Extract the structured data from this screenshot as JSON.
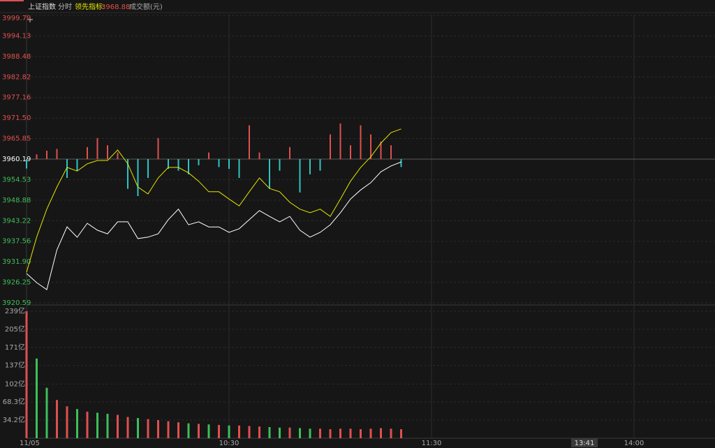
{
  "header": {
    "title": "上证指数",
    "mode": "分时",
    "indicator_label": "领先指标:",
    "indicator_value": 3968.88,
    "volume_label": "成交额(元)"
  },
  "cursor": {
    "time_label": "13:41"
  },
  "chart_data": [
    {
      "type": "line",
      "x": [
        0,
        3,
        6,
        9,
        12,
        15,
        18,
        21,
        24,
        27,
        30,
        33,
        36,
        39,
        42,
        45,
        48,
        51,
        54,
        57,
        60,
        63,
        66,
        69,
        72,
        75,
        78,
        81,
        84,
        87,
        90,
        93,
        96,
        99,
        102,
        105,
        108,
        111
      ],
      "xlim": [
        0,
        204
      ],
      "ylim": [
        3920.59,
        3999.79
      ],
      "yticks": [
        3920.59,
        3926.25,
        {
          "value": 3931.9,
          "label": "3931.90"
        },
        3937.56,
        3943.22,
        3948.88,
        3954.53,
        3960.19,
        3965.85,
        {
          "value": 3971.5,
          "label": "3971.50"
        },
        3977.16,
        3982.82,
        3988.48,
        3994.13,
        3999.79
      ],
      "baseline": 3960.19,
      "label_up_color": "#e0504f",
      "label_down_color": "#3fbf5a",
      "grid": true,
      "series": [
        {
          "color": "#ffffff",
          "values": [
            3928.66,
            3926.16,
            3924.24,
            3935.2,
            3941.54,
            3938.66,
            3942.5,
            3940.6,
            3939.6,
            3942.9,
            3942.9,
            3938.3,
            3938.7,
            3939.6,
            3943.5,
            3946.4,
            3942.1,
            3942.9,
            3941.5,
            3941.5,
            3940.0,
            3941.0,
            3943.5,
            3946.0,
            3944.4,
            3942.9,
            3944.4,
            3940.6,
            3938.7,
            3940.0,
            3942.1,
            3945.4,
            3949.2,
            3951.7,
            3953.7,
            3956.7,
            3958.3,
            3959.4
          ]
        },
        {
          "color": "#e6e600",
          "values": [
            3929.0,
            3938.7,
            3946.4,
            3952.5,
            3957.9,
            3956.9,
            3958.9,
            3959.8,
            3959.8,
            3962.7,
            3958.9,
            3952.5,
            3950.6,
            3955.0,
            3957.9,
            3957.9,
            3956.4,
            3954.1,
            3951.2,
            3951.2,
            3949.2,
            3947.3,
            3951.2,
            3955.0,
            3952.1,
            3951.2,
            3948.3,
            3946.4,
            3945.4,
            3946.4,
            3944.4,
            3949.2,
            3954.1,
            3957.9,
            3960.8,
            3964.6,
            3967.5,
            3968.5
          ]
        }
      ],
      "indicator_bars": {
        "up_color": "#e0504f",
        "down_color": "#2ec4c4",
        "values": [
          3957.6,
          3961.5,
          3962.5,
          3963.0,
          3955.0,
          3957.0,
          3963.5,
          3966.0,
          3964.0,
          3962.0,
          3952.0,
          3950.0,
          3955.0,
          3966.0,
          3957.5,
          3957.0,
          3956.0,
          3958.5,
          3962.0,
          3958.0,
          3957.5,
          3955.0,
          3969.5,
          3962.0,
          3952.0,
          3957.0,
          3963.5,
          3951.0,
          3956.0,
          3957.0,
          3967.0,
          3970.0,
          3964.0,
          3969.5,
          3967.0,
          3965.0,
          3964.0,
          3958.0
        ]
      }
    },
    {
      "type": "bar",
      "x": [
        0,
        3,
        6,
        9,
        12,
        15,
        18,
        21,
        24,
        27,
        30,
        33,
        36,
        39,
        42,
        45,
        48,
        51,
        54,
        57,
        60,
        63,
        66,
        69,
        72,
        75,
        78,
        81,
        84,
        87,
        90,
        93,
        96,
        99,
        102,
        105,
        108,
        111
      ],
      "xlim": [
        0,
        204
      ],
      "xticks": [
        {
          "value": 0,
          "label": "11/05"
        },
        {
          "value": 60,
          "label": "10:30"
        },
        {
          "value": 120,
          "label": "11:30"
        },
        {
          "value": 180,
          "label": "14:00"
        }
      ],
      "ylim": [
        0,
        239
      ],
      "yticks": [
        {
          "value": 34.2,
          "label": "34.2亿"
        },
        {
          "value": 68.3,
          "label": "68.3亿"
        },
        {
          "value": 102,
          "label": "102亿"
        },
        {
          "value": 137,
          "label": "137亿"
        },
        {
          "value": 171,
          "label": "171亿"
        },
        {
          "value": 205,
          "label": "205亿"
        },
        {
          "value": 239,
          "label": "239亿"
        }
      ],
      "up_color": "#e0504f",
      "down_color": "#3fbf5a",
      "values": [
        239,
        150,
        95,
        72,
        60,
        55,
        50,
        48,
        46,
        44,
        40,
        38,
        36,
        34,
        32,
        30,
        28,
        27,
        26,
        25,
        24,
        24,
        23,
        22,
        21,
        20,
        20,
        19,
        18,
        18,
        17,
        18,
        18,
        17,
        18,
        19,
        18,
        17
      ]
    }
  ]
}
